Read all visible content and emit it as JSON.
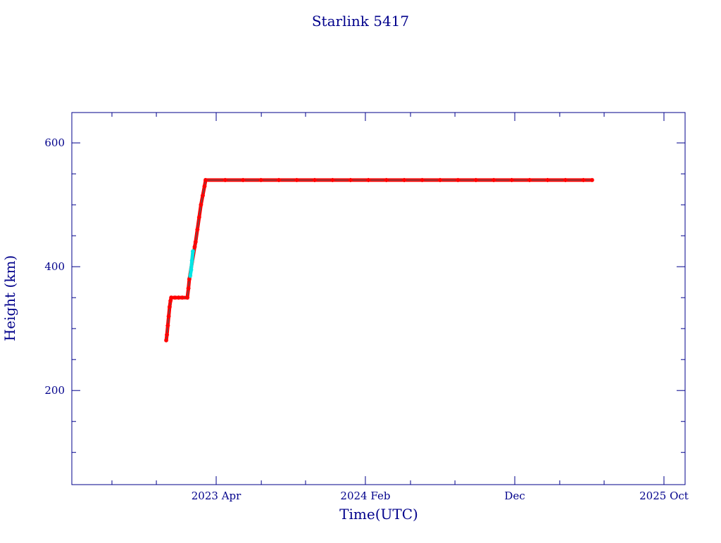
{
  "chart_data": {
    "type": "scatter",
    "title": "Starlink 5417",
    "xlabel": "Time(UTC)",
    "ylabel": "Height (km)",
    "xlim": [
      2022.444,
      2025.868
    ],
    "ylim": [
      48,
      649
    ],
    "xticks": [
      {
        "value": 2023.25,
        "label": "2023 Apr"
      },
      {
        "value": 2024.083,
        "label": "2024 Feb"
      },
      {
        "value": 2024.917,
        "label": "Dec"
      },
      {
        "value": 2025.75,
        "label": "2025 Oct"
      }
    ],
    "xminorticks": [
      2022.668,
      2022.916,
      2023.502,
      2023.749,
      2024.335,
      2024.583,
      2025.168,
      2025.416
    ],
    "yticks": [
      200,
      400,
      600
    ],
    "yminorticks": [
      100,
      150,
      250,
      300,
      350,
      450,
      500,
      550
    ],
    "series": [
      {
        "color": "#ff0000",
        "line_color": "#2f6f6f",
        "x": [
          2022.971,
          2022.975,
          2022.98,
          2022.985,
          2022.99,
          2022.995,
          2022.999,
          2023.02,
          2023.04,
          2023.06,
          2023.089,
          2023.095,
          2023.1,
          2023.13,
          2023.135,
          2023.145,
          2023.155,
          2023.165,
          2023.175,
          2023.185,
          2023.191,
          2023.3,
          2023.4,
          2023.5,
          2023.6,
          2023.7,
          2023.8,
          2023.9,
          2024.0,
          2024.1,
          2024.2,
          2024.3,
          2024.4,
          2024.5,
          2024.6,
          2024.7,
          2024.8,
          2024.9,
          2025.0,
          2025.1,
          2025.2,
          2025.3,
          2025.349
        ],
        "values": [
          281,
          290,
          305,
          320,
          335,
          345,
          350,
          350,
          350,
          350,
          350,
          365,
          380,
          432,
          440,
          460,
          480,
          500,
          515,
          530,
          540,
          540,
          540,
          540,
          540,
          540,
          540,
          540,
          540,
          540,
          540,
          540,
          540,
          540,
          540,
          540,
          540,
          540,
          540,
          540,
          540,
          540,
          540
        ]
      },
      {
        "color": "#00e5e5",
        "line_color": "#00e5e5",
        "x": [
          2023.105,
          2023.11,
          2023.115,
          2023.12
        ],
        "values": [
          385,
          395,
          410,
          425
        ]
      }
    ]
  }
}
